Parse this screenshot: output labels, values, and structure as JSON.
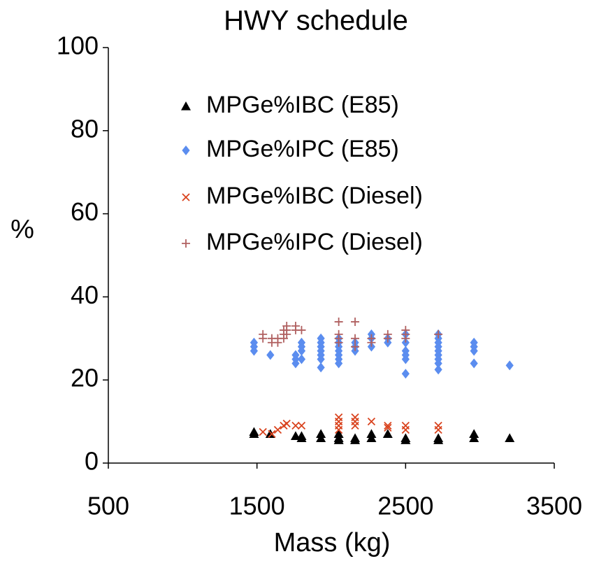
{
  "chart_data": {
    "type": "scatter",
    "title": "HWY schedule",
    "x_label": "Mass (kg)",
    "y_label": "%",
    "xlim": [
      500,
      3500
    ],
    "xticks": [
      500,
      1500,
      2500,
      3500
    ],
    "ylim": [
      0,
      100
    ],
    "yticks": [
      0,
      20,
      40,
      60,
      80,
      100
    ],
    "grid": false,
    "legend": "upper center",
    "series": [
      {
        "name": "MPGe%IBC (E85)",
        "color": "#000000",
        "marker": "triangle",
        "x": [
          1480,
          1480,
          1590,
          1760,
          1800,
          1800,
          1930,
          1930,
          2050,
          2050,
          2050,
          2160,
          2160,
          2270,
          2270,
          2380,
          2500,
          2500,
          2720,
          2720,
          2960,
          2960,
          3200
        ],
        "values": [
          7,
          7.5,
          7,
          6.5,
          6,
          6.5,
          6,
          7,
          5.5,
          6,
          7,
          5.5,
          6,
          6,
          7,
          7,
          5.5,
          6,
          5.5,
          6,
          6,
          7,
          6
        ]
      },
      {
        "name": "MPGe%IPC (E85)",
        "color": "#5b8def",
        "marker": "diamond",
        "x": [
          1480,
          1480,
          1480,
          1590,
          1760,
          1760,
          1760,
          1800,
          1800,
          1800,
          1800,
          1930,
          1930,
          1930,
          1930,
          1930,
          1930,
          1930,
          2050,
          2050,
          2050,
          2050,
          2050,
          2050,
          2050,
          2160,
          2160,
          2160,
          2270,
          2270,
          2270,
          2380,
          2380,
          2500,
          2500,
          2500,
          2500,
          2500,
          2500,
          2720,
          2720,
          2720,
          2720,
          2720,
          2720,
          2720,
          2720,
          2720,
          2960,
          2960,
          2960,
          2960,
          3200
        ],
        "values": [
          27,
          28,
          29,
          26,
          24,
          25,
          26,
          25,
          27,
          28,
          29,
          23,
          25,
          26,
          27,
          28,
          29,
          30,
          24,
          25,
          26,
          27,
          28,
          29,
          30,
          27,
          28,
          29,
          28,
          30,
          31,
          29,
          30,
          21.5,
          25,
          26,
          27,
          29,
          31,
          22.5,
          24,
          25,
          26,
          27,
          28,
          29,
          30,
          31,
          24,
          27,
          28,
          29,
          23.5
        ]
      },
      {
        "name": "MPGe%IBC (Diesel)",
        "color": "#d9431e",
        "marker": "x",
        "x": [
          1540,
          1600,
          1640,
          1680,
          1700,
          1760,
          1800,
          2050,
          2050,
          2050,
          2050,
          2160,
          2160,
          2160,
          2270,
          2380,
          2380,
          2500,
          2500,
          2720,
          2720
        ],
        "values": [
          7.5,
          7,
          8,
          9,
          9.5,
          9,
          9,
          8,
          9,
          10,
          11,
          9,
          10,
          11,
          10,
          8.5,
          9,
          8,
          9,
          8,
          9
        ]
      },
      {
        "name": "MPGe%IPC (Diesel)",
        "color": "#b06060",
        "marker": "plus",
        "x": [
          1540,
          1540,
          1600,
          1600,
          1640,
          1640,
          1680,
          1680,
          1680,
          1700,
          1700,
          1700,
          1760,
          1760,
          1800,
          2050,
          2050,
          2050,
          2050,
          2160,
          2160,
          2160,
          2270,
          2270,
          2380,
          2380,
          2500,
          2500,
          2500,
          2720
        ],
        "values": [
          30,
          31,
          29,
          30,
          29,
          30,
          30,
          31,
          32,
          31,
          32,
          33,
          32,
          33,
          32,
          29,
          30,
          31,
          34,
          28,
          30,
          34,
          29,
          30,
          30,
          31,
          30,
          31,
          32,
          31
        ]
      }
    ]
  }
}
